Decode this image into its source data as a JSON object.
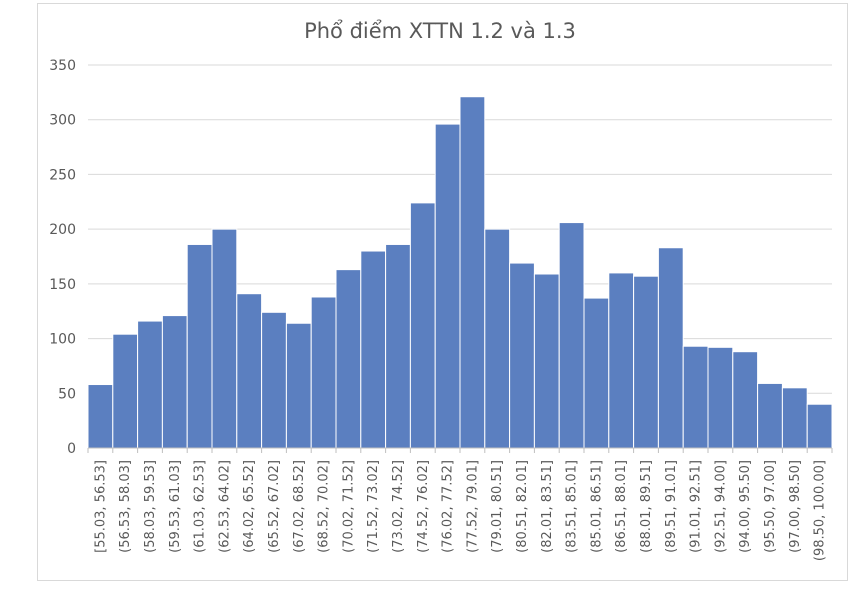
{
  "chart_data": {
    "type": "bar",
    "title": "Phổ điểm XTTN 1.2 và 1.3",
    "xlabel": "",
    "ylabel": "",
    "ylim": [
      0,
      350
    ],
    "yticks": [
      0,
      50,
      100,
      150,
      200,
      250,
      300,
      350
    ],
    "grid": true,
    "legend": "none",
    "bar_color": "#5b7fc0",
    "categories": [
      "[55.03, 56.53]",
      "(56.53, 58.03]",
      "(58.03, 59.53]",
      "(59.53, 61.03]",
      "(61.03, 62.53]",
      "(62.53, 64.02]",
      "(64.02, 65.52]",
      "(65.52, 67.02]",
      "(67.02, 68.52]",
      "(68.52, 70.02]",
      "(70.02, 71.52]",
      "(71.52, 73.02]",
      "(73.02, 74.52]",
      "(74.52, 76.02]",
      "(76.02, 77.52]",
      "(77.52, 79.01]",
      "(79.01, 80.51]",
      "(80.51, 82.01]",
      "(82.01, 83.51]",
      "(83.51, 85.01]",
      "(85.01, 86.51]",
      "(86.51, 88.01]",
      "(88.01, 89.51]",
      "(89.51, 91.01]",
      "(91.01, 92.51]",
      "(92.51, 94.00]",
      "(94.00, 95.50]",
      "(95.50, 97.00]",
      "(97.00, 98.50]",
      "(98.50, 100.00]"
    ],
    "values": [
      58,
      104,
      116,
      121,
      186,
      200,
      141,
      124,
      114,
      138,
      163,
      180,
      186,
      224,
      296,
      321,
      200,
      169,
      159,
      206,
      137,
      160,
      157,
      183,
      93,
      92,
      88,
      59,
      55,
      40
    ]
  }
}
